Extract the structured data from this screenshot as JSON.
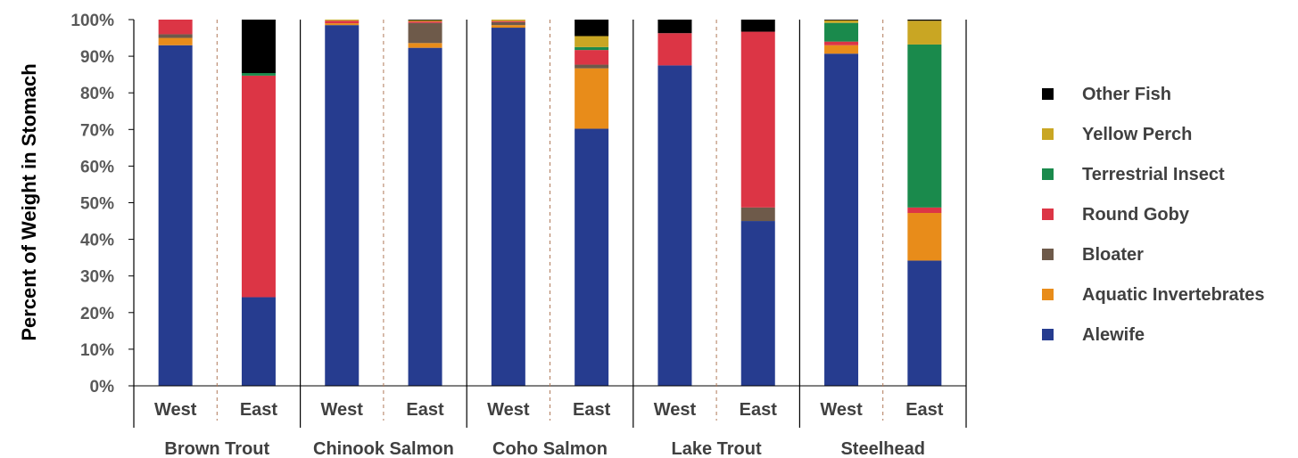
{
  "chart_data": {
    "type": "bar",
    "stacked": true,
    "title": "",
    "ylabel": "Percent of Weight in Stomach",
    "xlabel": "",
    "ylim": [
      0,
      100
    ],
    "y_ticks": [
      "0%",
      "10%",
      "20%",
      "30%",
      "40%",
      "50%",
      "60%",
      "70%",
      "80%",
      "90%",
      "100%"
    ],
    "groups": [
      "Brown Trout",
      "Chinook Salmon",
      "Coho Salmon",
      "Lake Trout",
      "Steelhead"
    ],
    "categories": [
      "West",
      "East",
      "West",
      "East",
      "West",
      "East",
      "West",
      "East",
      "West",
      "East"
    ],
    "legend_position": "right",
    "series": [
      {
        "name": "Alewife",
        "color": "#263c8f",
        "values": [
          93,
          24.2,
          98.5,
          92.3,
          97.8,
          70.2,
          87.5,
          45,
          90.7,
          34.2
        ]
      },
      {
        "name": "Aquatic Invertebrates",
        "color": "#e88c1a",
        "values": [
          2,
          0,
          0.5,
          1.3,
          0.7,
          16.5,
          0,
          0,
          2.3,
          13
        ]
      },
      {
        "name": "Bloater",
        "color": "#6e5a4a",
        "values": [
          1,
          0,
          0,
          5.5,
          0.8,
          1,
          0,
          3.7,
          0,
          0
        ]
      },
      {
        "name": "Round Goby",
        "color": "#dc3545",
        "values": [
          4,
          60.5,
          0.7,
          0.4,
          0.3,
          4,
          8.8,
          48,
          1,
          1.5
        ]
      },
      {
        "name": "Terrestrial Insect",
        "color": "#1a8a4c",
        "values": [
          0,
          0.7,
          0,
          0,
          0,
          0.8,
          0,
          0,
          5.1,
          44.5
        ]
      },
      {
        "name": "Yellow Perch",
        "color": "#c9a623",
        "values": [
          0,
          0,
          0.3,
          0.3,
          0.4,
          3,
          0,
          0,
          0.7,
          6.5
        ]
      },
      {
        "name": "Other Fish",
        "color": "#000000",
        "values": [
          0,
          14.6,
          0,
          0.2,
          0,
          4.5,
          3.7,
          3.3,
          0.2,
          0.3
        ]
      }
    ]
  }
}
